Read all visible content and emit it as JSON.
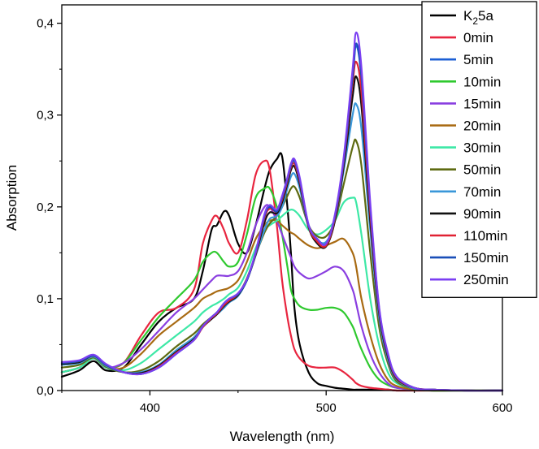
{
  "chart_data": {
    "type": "line",
    "xlabel": "Wavelength (nm)",
    "ylabel": "Absorption",
    "xlim": [
      350,
      600
    ],
    "ylim": [
      0,
      0.42
    ],
    "xticks": [
      400,
      500,
      600
    ],
    "xtick_labels": [
      "400",
      "500",
      "600"
    ],
    "yticks": [
      0,
      0.1,
      0.2,
      0.3,
      0.4
    ],
    "ytick_labels": [
      "0,0",
      "0,1",
      "0,2",
      "0,3",
      "0,4"
    ],
    "grid": false,
    "legend_position": "top-right",
    "x": [
      350,
      360,
      368,
      375,
      385,
      395,
      405,
      415,
      425,
      430,
      435,
      438,
      442,
      445,
      450,
      455,
      460,
      465,
      468,
      472,
      475,
      478,
      480,
      482,
      485,
      490,
      495,
      500,
      505,
      510,
      515,
      517,
      520,
      525,
      530,
      535,
      540,
      550,
      560,
      580,
      600
    ],
    "series": [
      {
        "name": "K",
        "name_sub": "2",
        "name_suffix": "5a",
        "color": "#000000",
        "values": [
          0.015,
          0.022,
          0.032,
          0.022,
          0.025,
          0.05,
          0.075,
          0.09,
          0.1,
          0.13,
          0.175,
          0.18,
          0.195,
          0.19,
          0.16,
          0.15,
          0.18,
          0.22,
          0.24,
          0.252,
          0.255,
          0.2,
          0.15,
          0.09,
          0.05,
          0.02,
          0.008,
          0.005,
          0.003,
          0.002,
          0.001,
          0.001,
          0.001,
          0.001,
          0.001,
          0.001,
          0.0,
          0.0,
          0.0,
          0.0,
          0.0
        ]
      },
      {
        "name": "0min",
        "color": "#e8253f",
        "values": [
          0.02,
          0.025,
          0.035,
          0.025,
          0.03,
          0.06,
          0.085,
          0.09,
          0.11,
          0.16,
          0.185,
          0.19,
          0.175,
          0.16,
          0.15,
          0.185,
          0.235,
          0.25,
          0.24,
          0.18,
          0.12,
          0.08,
          0.06,
          0.045,
          0.035,
          0.027,
          0.025,
          0.025,
          0.025,
          0.02,
          0.012,
          0.008,
          0.005,
          0.003,
          0.002,
          0.001,
          0.0,
          0.0,
          0.0,
          0.0,
          0.0
        ]
      },
      {
        "name": "5min",
        "color": "#1c5fd4",
        "values": [
          0.03,
          0.032,
          0.038,
          0.028,
          0.02,
          0.018,
          0.025,
          0.04,
          0.055,
          0.07,
          0.08,
          0.085,
          0.095,
          0.1,
          0.105,
          0.12,
          0.15,
          0.19,
          0.2,
          0.195,
          0.21,
          0.23,
          0.245,
          0.25,
          0.23,
          0.18,
          0.165,
          0.16,
          0.19,
          0.25,
          0.34,
          0.375,
          0.34,
          0.2,
          0.09,
          0.04,
          0.015,
          0.003,
          0.001,
          0.0,
          0.0
        ]
      },
      {
        "name": "10min",
        "color": "#2fc92f",
        "values": [
          0.02,
          0.025,
          0.035,
          0.025,
          0.03,
          0.055,
          0.08,
          0.1,
          0.12,
          0.14,
          0.15,
          0.15,
          0.14,
          0.135,
          0.14,
          0.17,
          0.21,
          0.22,
          0.22,
          0.2,
          0.17,
          0.135,
          0.11,
          0.1,
          0.092,
          0.088,
          0.088,
          0.09,
          0.09,
          0.085,
          0.07,
          0.06,
          0.045,
          0.025,
          0.012,
          0.006,
          0.003,
          0.001,
          0.0,
          0.0,
          0.0
        ]
      },
      {
        "name": "15min",
        "color": "#8a3ee0",
        "values": [
          0.02,
          0.025,
          0.035,
          0.025,
          0.03,
          0.045,
          0.065,
          0.085,
          0.1,
          0.11,
          0.12,
          0.125,
          0.125,
          0.125,
          0.13,
          0.15,
          0.18,
          0.2,
          0.2,
          0.185,
          0.17,
          0.155,
          0.145,
          0.135,
          0.128,
          0.122,
          0.125,
          0.13,
          0.135,
          0.13,
          0.11,
          0.095,
          0.07,
          0.04,
          0.02,
          0.008,
          0.003,
          0.001,
          0.0,
          0.0,
          0.0
        ]
      },
      {
        "name": "20min",
        "color": "#a86a12",
        "values": [
          0.02,
          0.025,
          0.035,
          0.025,
          0.025,
          0.04,
          0.06,
          0.075,
          0.09,
          0.1,
          0.105,
          0.108,
          0.11,
          0.112,
          0.12,
          0.14,
          0.165,
          0.18,
          0.185,
          0.185,
          0.18,
          0.175,
          0.172,
          0.17,
          0.165,
          0.158,
          0.155,
          0.158,
          0.162,
          0.165,
          0.15,
          0.135,
          0.1,
          0.06,
          0.03,
          0.012,
          0.005,
          0.001,
          0.0,
          0.0,
          0.0
        ]
      },
      {
        "name": "30min",
        "color": "#3de8a6",
        "values": [
          0.02,
          0.025,
          0.035,
          0.025,
          0.022,
          0.03,
          0.045,
          0.06,
          0.075,
          0.085,
          0.092,
          0.095,
          0.1,
          0.105,
          0.112,
          0.13,
          0.155,
          0.175,
          0.18,
          0.185,
          0.19,
          0.195,
          0.197,
          0.196,
          0.19,
          0.175,
          0.17,
          0.175,
          0.185,
          0.205,
          0.21,
          0.205,
          0.17,
          0.1,
          0.05,
          0.02,
          0.008,
          0.002,
          0.0,
          0.0,
          0.0
        ]
      },
      {
        "name": "50min",
        "color": "#5e6b12",
        "values": [
          0.025,
          0.028,
          0.036,
          0.026,
          0.02,
          0.022,
          0.032,
          0.048,
          0.062,
          0.072,
          0.08,
          0.085,
          0.092,
          0.098,
          0.105,
          0.122,
          0.148,
          0.172,
          0.182,
          0.19,
          0.2,
          0.212,
          0.22,
          0.222,
          0.21,
          0.18,
          0.168,
          0.168,
          0.185,
          0.225,
          0.265,
          0.272,
          0.245,
          0.15,
          0.07,
          0.03,
          0.01,
          0.002,
          0.0,
          0.0,
          0.0
        ]
      },
      {
        "name": "70min",
        "color": "#3a97d9",
        "values": [
          0.028,
          0.03,
          0.037,
          0.027,
          0.02,
          0.02,
          0.028,
          0.044,
          0.058,
          0.07,
          0.078,
          0.083,
          0.09,
          0.096,
          0.103,
          0.12,
          0.147,
          0.175,
          0.187,
          0.19,
          0.2,
          0.22,
          0.233,
          0.236,
          0.22,
          0.178,
          0.164,
          0.162,
          0.185,
          0.24,
          0.3,
          0.312,
          0.285,
          0.175,
          0.08,
          0.034,
          0.012,
          0.002,
          0.001,
          0.0,
          0.0
        ]
      },
      {
        "name": "90min",
        "color": "#111111",
        "values": [
          0.029,
          0.031,
          0.038,
          0.028,
          0.02,
          0.019,
          0.027,
          0.042,
          0.056,
          0.069,
          0.078,
          0.083,
          0.092,
          0.097,
          0.104,
          0.12,
          0.148,
          0.183,
          0.194,
          0.193,
          0.205,
          0.225,
          0.24,
          0.244,
          0.225,
          0.178,
          0.16,
          0.157,
          0.185,
          0.245,
          0.32,
          0.342,
          0.31,
          0.185,
          0.085,
          0.037,
          0.013,
          0.003,
          0.001,
          0.0,
          0.0
        ]
      },
      {
        "name": "110min",
        "color": "#e02233",
        "values": [
          0.03,
          0.032,
          0.038,
          0.028,
          0.02,
          0.018,
          0.026,
          0.041,
          0.055,
          0.069,
          0.079,
          0.084,
          0.093,
          0.098,
          0.105,
          0.121,
          0.149,
          0.188,
          0.198,
          0.195,
          0.208,
          0.228,
          0.243,
          0.247,
          0.228,
          0.179,
          0.162,
          0.158,
          0.188,
          0.25,
          0.335,
          0.358,
          0.325,
          0.193,
          0.088,
          0.039,
          0.014,
          0.003,
          0.001,
          0.0,
          0.0
        ]
      },
      {
        "name": "150min",
        "color": "#1a4fb8",
        "values": [
          0.03,
          0.032,
          0.038,
          0.028,
          0.02,
          0.018,
          0.025,
          0.04,
          0.055,
          0.07,
          0.08,
          0.085,
          0.095,
          0.1,
          0.105,
          0.12,
          0.15,
          0.19,
          0.2,
          0.195,
          0.21,
          0.23,
          0.245,
          0.25,
          0.23,
          0.18,
          0.165,
          0.16,
          0.19,
          0.252,
          0.342,
          0.378,
          0.342,
          0.2,
          0.09,
          0.04,
          0.015,
          0.003,
          0.001,
          0.0,
          0.0
        ]
      },
      {
        "name": "250min",
        "color": "#7b3ff2",
        "values": [
          0.031,
          0.033,
          0.039,
          0.029,
          0.02,
          0.018,
          0.025,
          0.04,
          0.055,
          0.07,
          0.08,
          0.085,
          0.095,
          0.1,
          0.106,
          0.121,
          0.151,
          0.192,
          0.202,
          0.197,
          0.212,
          0.232,
          0.247,
          0.252,
          0.232,
          0.181,
          0.165,
          0.16,
          0.192,
          0.255,
          0.35,
          0.39,
          0.352,
          0.205,
          0.092,
          0.041,
          0.015,
          0.003,
          0.001,
          0.0,
          0.0
        ]
      }
    ]
  }
}
